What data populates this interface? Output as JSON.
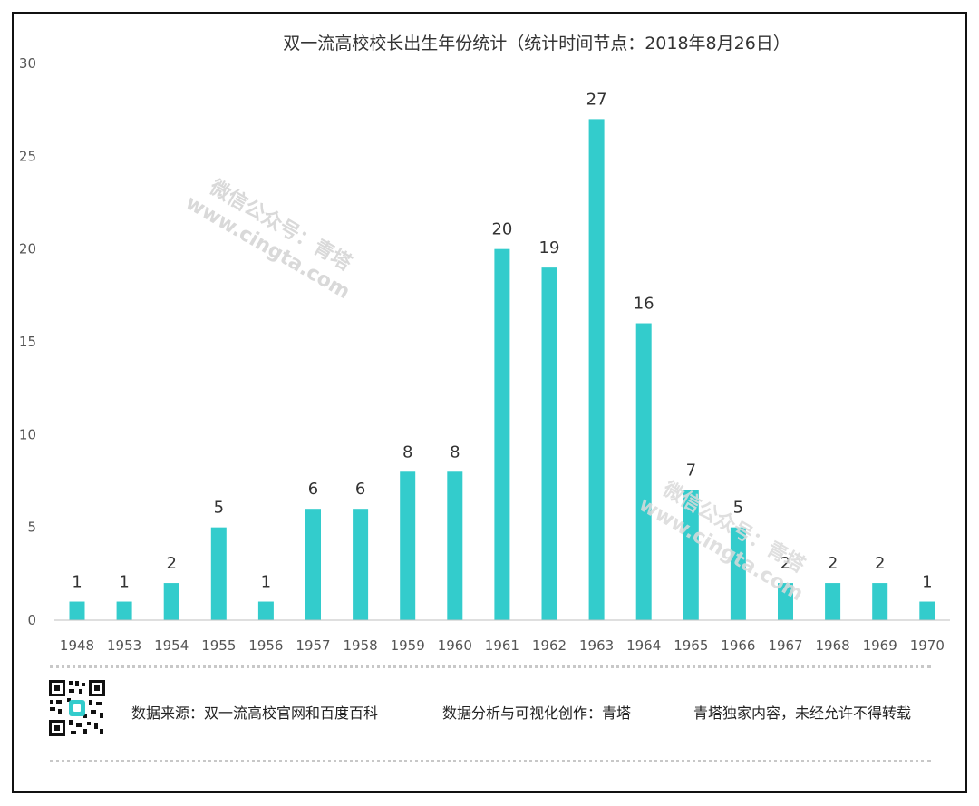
{
  "chart_data": {
    "type": "bar",
    "title": "双一流高校校长出生年份统计（统计时间节点：2018年8月26日）",
    "categories": [
      "1948",
      "1953",
      "1954",
      "1955",
      "1956",
      "1957",
      "1958",
      "1959",
      "1960",
      "1961",
      "1962",
      "1963",
      "1964",
      "1965",
      "1966",
      "1967",
      "1968",
      "1969",
      "1970"
    ],
    "values": [
      1,
      1,
      2,
      5,
      1,
      6,
      6,
      8,
      8,
      20,
      19,
      27,
      16,
      7,
      5,
      2,
      2,
      2,
      1
    ],
    "ylim": [
      0,
      30
    ],
    "yticks": [
      0,
      5,
      10,
      15,
      20,
      25,
      30
    ],
    "grid": false,
    "legend": "none",
    "bar_color": "#33CCCC",
    "data_labels": true
  },
  "watermark": {
    "line1": "微信公众号：青塔",
    "line2": "www.cingta.com"
  },
  "footer": {
    "source": "数据来源：双一流高校官网和百度百科",
    "analysis": "数据分析与可视化创作：青塔",
    "copyright": "青塔独家内容，未经允许不得转载",
    "qr_icon": "qr-code-icon"
  }
}
